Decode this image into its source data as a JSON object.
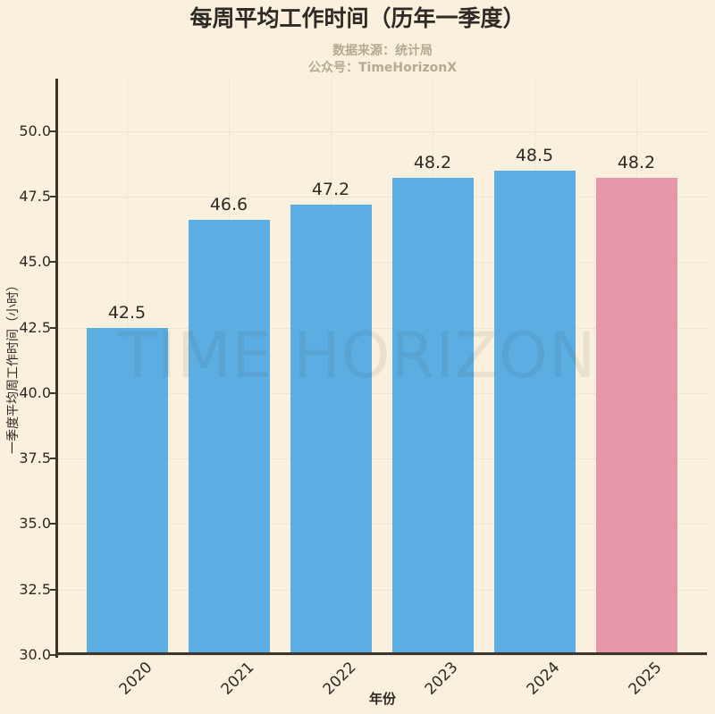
{
  "title": "每周平均工作时间（历年一季度）",
  "subtitle": {
    "source": "数据来源：统计局",
    "account": "公众号：TimeHorizonX"
  },
  "watermark": "TIME HORIZON",
  "colors": {
    "background": "#faf0dd",
    "bar_default": "#5bade2",
    "bar_highlight": "#e897ab",
    "text": "#2e2a25",
    "subtitle_text": "#b6ab91",
    "axis": "#3a352d",
    "grid": "#e4dcc8"
  },
  "chart_data": {
    "type": "bar",
    "title": "每周平均工作时间（历年一季度）",
    "categories": [
      "2020",
      "2021",
      "2022",
      "2023",
      "2024",
      "2025"
    ],
    "values": [
      42.5,
      46.6,
      47.2,
      48.2,
      48.5,
      48.2
    ],
    "value_labels": [
      "42.5",
      "46.6",
      "47.2",
      "48.2",
      "48.5",
      "48.2"
    ],
    "bar_colors": [
      "#5bade2",
      "#5bade2",
      "#5bade2",
      "#5bade2",
      "#5bade2",
      "#e897ab"
    ],
    "highlight_index": 5,
    "xlabel": "年份",
    "ylabel": "一季度平均周工作时间（小时）",
    "ylim": [
      30,
      52
    ],
    "yticks": [
      30.0,
      32.5,
      35.0,
      37.5,
      40.0,
      42.5,
      45.0,
      47.5,
      50.0
    ],
    "ytick_labels": [
      "30.0",
      "32.5",
      "35.0",
      "37.5",
      "40.0",
      "42.5",
      "45.0",
      "47.5",
      "50.0"
    ],
    "grid": "dotted",
    "legend_position": "none"
  }
}
